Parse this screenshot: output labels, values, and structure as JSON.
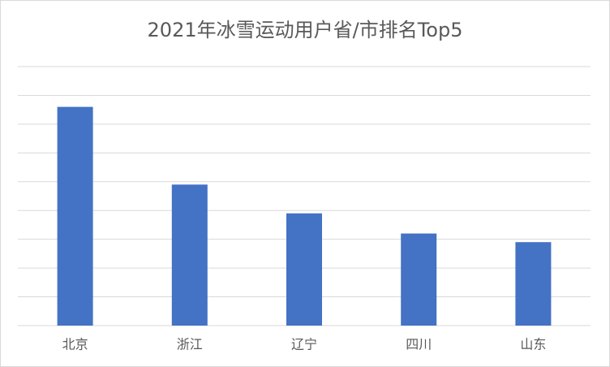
{
  "chart_data": {
    "type": "bar",
    "title": "2021年冰雪运动用户省/市排名Top5",
    "categories": [
      "北京",
      "浙江",
      "辽宁",
      "四川",
      "山东"
    ],
    "values": [
      7.6,
      4.9,
      3.9,
      3.2,
      2.9
    ],
    "color": "#4472c4",
    "ylim": [
      0,
      9
    ],
    "yticks": [
      0,
      1,
      2,
      3,
      4,
      5,
      6,
      7,
      8,
      9
    ],
    "ytick_labels_visible": false,
    "grid": true
  }
}
